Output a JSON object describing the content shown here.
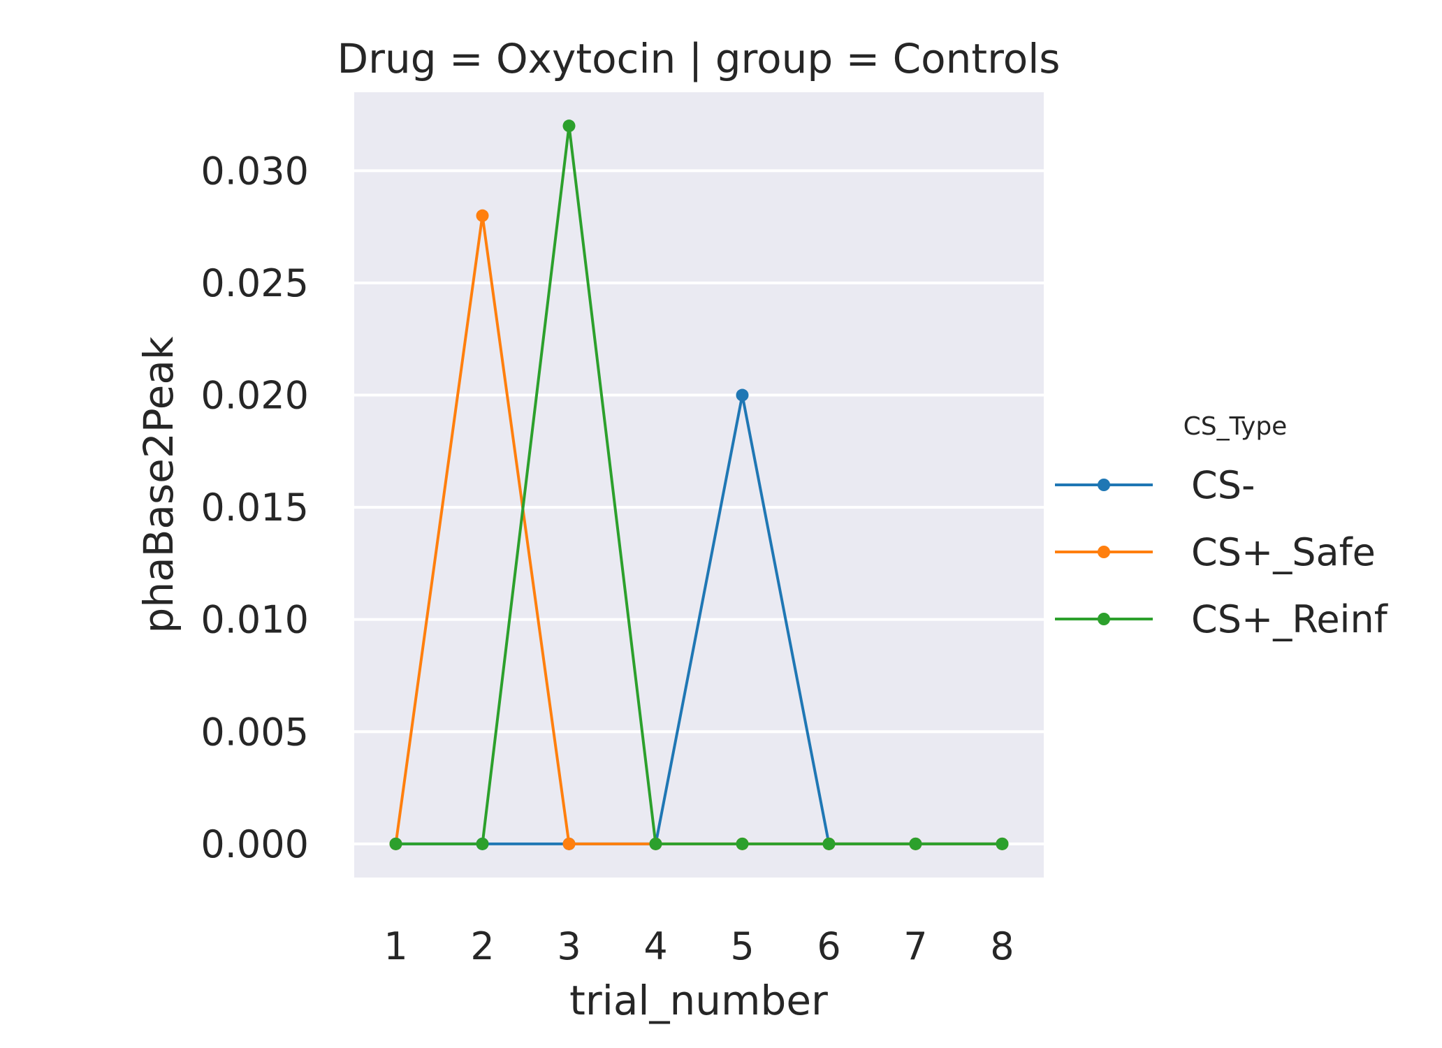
{
  "chart_data": {
    "type": "line",
    "title": "Drug = Oxytocin | group = Controls",
    "xlabel": "trial_number",
    "ylabel": "phaBase2Peak",
    "x": [
      1,
      2,
      3,
      4,
      5,
      6,
      7,
      8
    ],
    "xticks": [
      "1",
      "2",
      "3",
      "4",
      "5",
      "6",
      "7",
      "8"
    ],
    "yticks": [
      "0.000",
      "0.005",
      "0.010",
      "0.015",
      "0.020",
      "0.025",
      "0.030"
    ],
    "ylim": [
      -0.0015,
      0.0335
    ],
    "grid": true,
    "legend": {
      "title": "CS_Type",
      "position": "right"
    },
    "series": [
      {
        "name": "CS-",
        "color": "#1f77b4",
        "values": [
          0,
          0,
          0,
          0,
          0.02,
          0,
          0,
          0
        ]
      },
      {
        "name": "CS+_Safe",
        "color": "#ff7f0e",
        "values": [
          0,
          0.028,
          0,
          0,
          0,
          0,
          0,
          0
        ]
      },
      {
        "name": "CS+_Reinf",
        "color": "#2ca02c",
        "values": [
          0,
          0,
          0.032,
          0,
          0,
          0,
          0,
          0
        ]
      }
    ],
    "colors": {
      "plot_background": "#eaeaf2",
      "grid": "#ffffff"
    }
  }
}
